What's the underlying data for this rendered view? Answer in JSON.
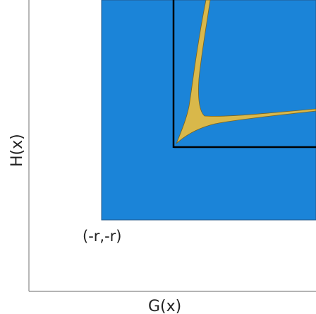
{
  "labels": {
    "x_axis": "G(x)",
    "y_axis": "H(x)",
    "corner": "(-r,-r)"
  },
  "colors": {
    "region_fill": "#1b84d8",
    "region_edge": "#26598a",
    "curve_fill": "#d9b84a",
    "curve_edge": "#7a6420",
    "axis_line": "#888888",
    "boundary_line": "#000000",
    "text": "#222222"
  }
}
